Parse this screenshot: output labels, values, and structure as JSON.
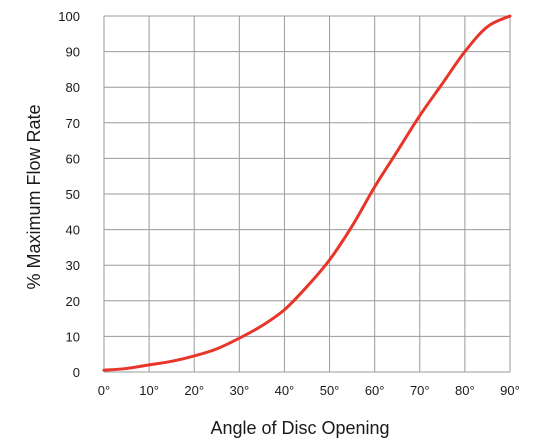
{
  "chart_data": {
    "type": "line",
    "title": "",
    "xlabel": "Angle of Disc Opening",
    "ylabel": "% Maximum Flow Rate",
    "xlim": [
      0,
      90
    ],
    "ylim": [
      0,
      100
    ],
    "x_ticks": [
      "0°",
      "10°",
      "20°",
      "30°",
      "40°",
      "50°",
      "60°",
      "70°",
      "80°",
      "90°"
    ],
    "x_tick_values": [
      0,
      10,
      20,
      30,
      40,
      50,
      60,
      70,
      80,
      90
    ],
    "y_ticks": [
      "0",
      "10",
      "20",
      "30",
      "40",
      "50",
      "60",
      "70",
      "80",
      "90",
      "100"
    ],
    "y_tick_values": [
      0,
      10,
      20,
      30,
      40,
      50,
      60,
      70,
      80,
      90,
      100
    ],
    "grid": true,
    "line_color": "#e8352a",
    "grid_color": "#9a9a9a",
    "series": [
      {
        "x": [
          0,
          5,
          10,
          15,
          20,
          25,
          30,
          35,
          40,
          45,
          50,
          55,
          60,
          65,
          70,
          75,
          80,
          85,
          90
        ],
        "values": [
          0.5,
          1,
          2,
          3,
          4.5,
          6.5,
          9.5,
          13,
          17.5,
          24,
          31.5,
          41,
          52,
          62,
          72,
          81,
          90,
          97,
          100
        ]
      }
    ]
  }
}
